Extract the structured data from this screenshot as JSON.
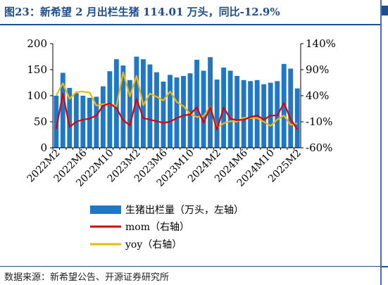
{
  "title": "图23：新希望 2 月出栏生猪 114.01 万头，同比-12.9%",
  "source": "数据来源：新希望公告、开源证券研究所",
  "colors": {
    "bar": "#1f77c8",
    "mom": "#e00000",
    "yoy": "#f2b800",
    "title": "#1f4e8c"
  },
  "chart_data": {
    "type": "bar",
    "categories": [
      "2022M2",
      "2022M3",
      "2022M4",
      "2022M5",
      "2022M6",
      "2022M7",
      "2022M8",
      "2022M9",
      "2022M10",
      "2022M11",
      "2022M12",
      "2023M1",
      "2023M2",
      "2023M3",
      "2023M4",
      "2023M5",
      "2023M6",
      "2023M7",
      "2023M8",
      "2023M9",
      "2023M10",
      "2023M11",
      "2023M12",
      "2024M1",
      "2024M2",
      "2024M3",
      "2024M4",
      "2024M5",
      "2024M6",
      "2024M7",
      "2024M8",
      "2024M9",
      "2024M10",
      "2024M11",
      "2024M12",
      "2025M1",
      "2025M2"
    ],
    "x_tick_labels": [
      "2022M2",
      "2022M6",
      "2022M10",
      "2023M2",
      "2023M6",
      "2023M10",
      "2024M2",
      "2024M6",
      "2024M10",
      "2025M2"
    ],
    "left_axis": {
      "ylim": [
        0,
        200
      ],
      "ticks": [
        "0",
        "50",
        "100",
        "150",
        "200"
      ]
    },
    "right_axis": {
      "ylim": [
        -60,
        140
      ],
      "ticks": [
        "-60%",
        "-10%",
        "40%",
        "90%",
        "140%"
      ]
    },
    "grid": false,
    "legend_position": "bottom",
    "series": [
      {
        "name": "生猪出栏量（万头，左轴）",
        "type": "bar",
        "axis": "left",
        "values": [
          100,
          144,
          115,
          105,
          100,
          96,
          98,
          118,
          147,
          170,
          158,
          130,
          175,
          170,
          160,
          145,
          127,
          140,
          135,
          138,
          143,
          169,
          148,
          174,
          131,
          154,
          148,
          138,
          130,
          128,
          130,
          122,
          125,
          128,
          161,
          152,
          114
        ]
      },
      {
        "name": "mom（右轴）",
        "type": "line",
        "axis": "right",
        "values": [
          -24,
          44,
          -20,
          -10,
          -6,
          -4,
          2,
          21,
          25,
          16,
          -7,
          -17,
          34,
          -3,
          -6,
          -9,
          -12,
          -10,
          -3,
          2,
          4,
          18,
          -12,
          18,
          -25,
          17,
          -4,
          -7,
          -6,
          -1,
          2,
          -6,
          2,
          2,
          26,
          -5,
          -25
        ]
      },
      {
        "name": "yoy（右轴）",
        "type": "line",
        "axis": "right",
        "values": [
          40,
          64,
          34,
          47,
          48,
          46,
          21,
          24,
          24,
          20,
          85,
          39,
          78,
          22,
          44,
          38,
          31,
          48,
          28,
          20,
          5,
          -1,
          1,
          19,
          -22,
          -13,
          -9,
          -10,
          -2,
          -3,
          -3,
          -10,
          -18,
          -6,
          2,
          -16,
          -13
        ]
      }
    ]
  }
}
